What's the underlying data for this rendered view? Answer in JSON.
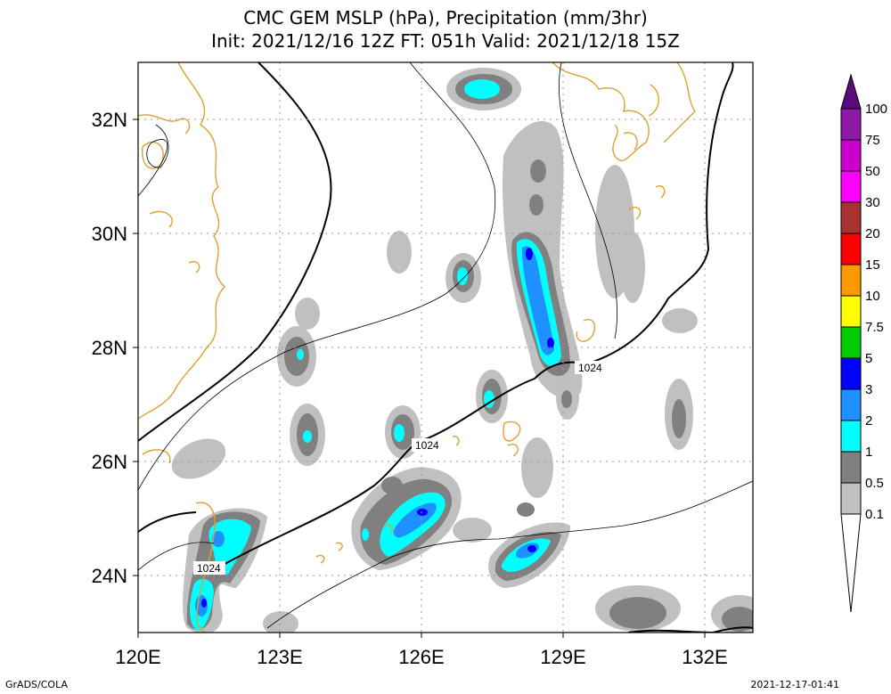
{
  "title": {
    "line1": "CMC GEM MSLP (hPa), Precipitation (mm/3hr)",
    "line2": "Init: 2021/12/16 12Z  FT: 051h  Valid: 2021/12/18 15Z"
  },
  "map": {
    "lon_min": 120,
    "lon_max": 133,
    "lat_min": 23,
    "lat_max": 33,
    "lon_ticks": [
      "120E",
      "123E",
      "126E",
      "129E",
      "132E"
    ],
    "lat_ticks": [
      "24N",
      "26N",
      "28N",
      "30N",
      "32N"
    ],
    "isobar_labels": [
      "1024",
      "1024",
      "1024"
    ],
    "colors": {
      "coast": "#e0a030",
      "grid": "#999999"
    }
  },
  "legend": {
    "labels": [
      "100",
      "75",
      "50",
      "30",
      "20",
      "15",
      "10",
      "7.5",
      "5",
      "3",
      "2",
      "1",
      "0.5",
      "0.1"
    ],
    "colors": [
      "#5a0a7a",
      "#8c1aa6",
      "#cc00cc",
      "#ff00ff",
      "#a83232",
      "#ff0000",
      "#ff9900",
      "#ffff00",
      "#00cc00",
      "#0000ff",
      "#1e90ff",
      "#00ffff",
      "#808080",
      "#c0c0c0",
      "#ffffff"
    ]
  },
  "footer": {
    "left": "GrADS/COLA",
    "right": "2021-12-17-01:41"
  }
}
